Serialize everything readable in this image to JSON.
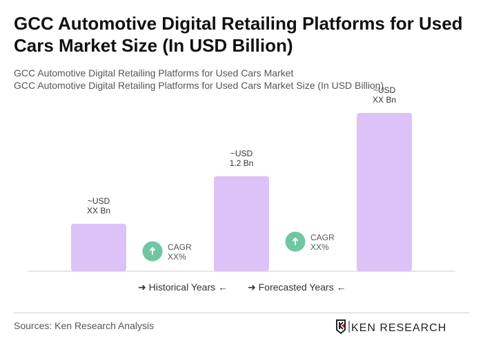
{
  "title": "GCC Automotive Digital Retailing Platforms for Used Cars Market Size (In USD Billion)",
  "subtitle1": "GCC Automotive Digital Retailing Platforms for Used Cars Market",
  "subtitle2": "GCC Automotive Digital Retailing Platforms for Used Cars Market Size (In USD Billion)",
  "chart_data": {
    "type": "bar",
    "categories": [
      "",
      "",
      ""
    ],
    "values": [
      0.6,
      1.2,
      2.0
    ],
    "data_labels": [
      [
        "~USD",
        "XX Bn"
      ],
      [
        "~USD",
        "1.2 Bn"
      ],
      [
        "~USD",
        "XX Bn"
      ]
    ],
    "cagr": [
      {
        "label": "CAGR",
        "value": "XX%"
      },
      {
        "label": "CAGR",
        "value": "XX%"
      }
    ],
    "bar_color": "#dcc2f7",
    "cagr_color": "#6fc7a2",
    "grid": false
  },
  "legend": {
    "historical": "Historical Years",
    "forecasted": "Forecasted Years"
  },
  "sources": "Sources: Ken Research Analysis",
  "logo_text": "KEN RESEARCH"
}
